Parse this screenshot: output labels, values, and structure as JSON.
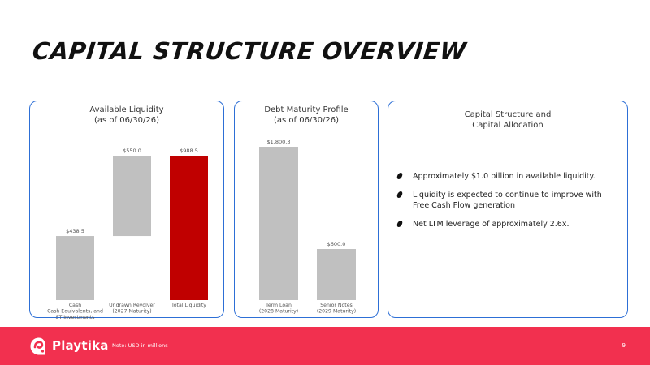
{
  "title": "CAPITAL STRUCTURE OVERVIEW",
  "chart_data": [
    {
      "type": "waterfall",
      "title": [
        "Available Liquidity",
        "(as of 06/30/26)"
      ],
      "categories": [
        [
          "Cash",
          "Cash Equivalents, and",
          "ST Investments"
        ],
        [
          "Undrawn Revolver",
          "(2027 Maturity)"
        ],
        [
          "Total Liquidity"
        ]
      ],
      "values": [
        438.5,
        550.0,
        988.5
      ],
      "value_labels": [
        "$438.5",
        "$550.0",
        "$988.5"
      ],
      "bar_roles": [
        "start",
        "increment",
        "total"
      ],
      "colors": [
        "#c0c0c0",
        "#c0c0c0",
        "#c00000"
      ],
      "ylim": [
        0,
        988.5
      ]
    },
    {
      "type": "bar",
      "title": [
        "Debt Maturity Profile",
        "(as of 06/30/26)"
      ],
      "categories": [
        [
          "Term Loan",
          "(2028 Maturity)"
        ],
        [
          "Senior Notes",
          "(2029 Maturity)"
        ]
      ],
      "values": [
        1800.3,
        600.0
      ],
      "value_labels": [
        "$1,800.3",
        "$600.0"
      ],
      "colors": [
        "#c0c0c0",
        "#c0c0c0"
      ],
      "ylim": [
        0,
        1800.3
      ]
    }
  ],
  "structure": {
    "title": [
      "Capital Structure and",
      "Capital Allocation"
    ],
    "bullets": [
      "Approximately $1.0 billion in available liquidity.",
      "Liquidity is expected to continue to improve with Free Cash Flow generation",
      "Net LTM leverage of approximately 2.6x."
    ]
  },
  "footer": {
    "brand": "Playtika",
    "note": "Note:  USD in millions",
    "page": "9",
    "color": "#f2304f"
  }
}
